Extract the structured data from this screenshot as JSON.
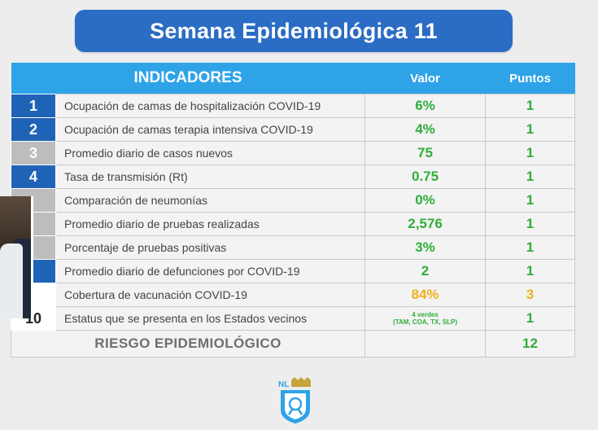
{
  "title": "Semana Epidemiológica 11",
  "headers": {
    "indicadores": "INDICADORES",
    "valor": "Valor",
    "puntos": "Puntos"
  },
  "rows": [
    {
      "num": "1",
      "indicator": "Ocupación de camas de hospitalización COVID-19",
      "value": "6%",
      "points": "1"
    },
    {
      "num": "2",
      "indicator": "Ocupación de camas terapia intensiva COVID-19",
      "value": "4%",
      "points": "1"
    },
    {
      "num": "3",
      "indicator": "Promedio diario de casos nuevos",
      "value": "75",
      "points": "1"
    },
    {
      "num": "4",
      "indicator": "Tasa de transmisión (Rt)",
      "value": "0.75",
      "points": "1"
    },
    {
      "num": "",
      "indicator": "Comparación de neumonías",
      "value": "0%",
      "points": "1"
    },
    {
      "num": "",
      "indicator": "Promedio diario de pruebas realizadas",
      "value": "2,576",
      "points": "1"
    },
    {
      "num": "",
      "indicator": "Porcentaje de pruebas positivas",
      "value": "3%",
      "points": "1"
    },
    {
      "num": "",
      "indicator": "Promedio diario de defunciones por COVID-19",
      "value": "2",
      "points": "1"
    },
    {
      "num": "",
      "indicator": "Cobertura de vacunación COVID-19",
      "value": "84%",
      "points": "3"
    },
    {
      "num": "10",
      "indicator": "Estatus que se presenta en los Estados vecinos",
      "value_line1": "4 verdes",
      "value_line2": "(TAM, COA, TX, SLP)",
      "points": "1"
    }
  ],
  "total": {
    "label": "RIESGO EPIDEMIOLÓGICO",
    "points": "12"
  },
  "logo": {
    "text": "NL"
  },
  "colors": {
    "banner": "#2b6cc4",
    "header": "#2ea3e8",
    "green": "#2fae3b",
    "orange": "#f0b21a"
  }
}
